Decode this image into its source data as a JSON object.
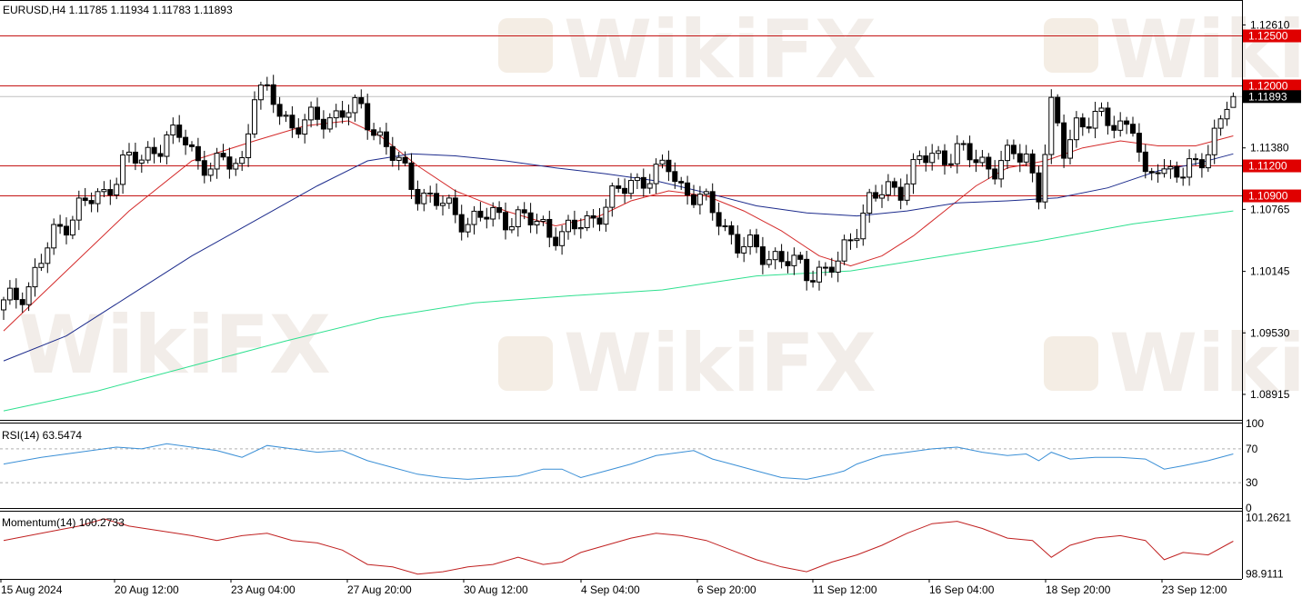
{
  "colors": {
    "background": "#ffffff",
    "bull_candle": "#ffffff",
    "bear_candle": "#000000",
    "ma_fast": "#d42a2a",
    "ma_mid": "#1c2b8c",
    "ma_slow": "#2ee08f",
    "level_line": "#c41414",
    "level_tag": "#e00000",
    "current_tag": "#000000",
    "rsi_line": "#3a8fd6",
    "momentum_line": "#c02020",
    "watermark": "#e5dcd2"
  },
  "watermark_text": "WikiFX",
  "chart_data": [
    {
      "type": "candlestick",
      "title": "EURUSD,H4  1.11785 1.11934 1.11783 1.11893",
      "symbol": "EURUSD",
      "timeframe": "H4",
      "ohlc_header": {
        "open": "1.11785",
        "high": "1.11934",
        "low": "1.11783",
        "close": "1.11893"
      },
      "ylim": [
        1.0866,
        1.1285
      ],
      "price_ticks": [
        "1.12610",
        "1.11380",
        "1.10765",
        "1.10145",
        "1.09530",
        "1.08915"
      ],
      "tick_values": [
        1.1261,
        1.1138,
        1.10765,
        1.10145,
        1.0953,
        1.08915
      ],
      "levels": [
        {
          "value": 1.125,
          "label": "1.12500"
        },
        {
          "value": 1.12,
          "label": "1.12000"
        },
        {
          "value": 1.112,
          "label": "1.11200"
        },
        {
          "value": 1.109,
          "label": "1.10900"
        }
      ],
      "current_price": {
        "value": 1.11893,
        "label": "1.11893"
      },
      "x_labels": [
        "15 Aug 2024",
        "20 Aug 12:00",
        "23 Aug 04:00",
        "27 Aug 20:00",
        "30 Aug 12:00",
        "4 Sep 04:00",
        "6 Sep 20:00",
        "11 Sep 12:00",
        "16 Sep 04:00",
        "18 Sep 20:00",
        "23 Sep 12:00"
      ],
      "close_anchors": [
        [
          0,
          1.098
        ],
        [
          4,
          1.1
        ],
        [
          8,
          1.105
        ],
        [
          12,
          1.108
        ],
        [
          16,
          1.109
        ],
        [
          19,
          1.1125
        ],
        [
          22,
          1.1125
        ],
        [
          26,
          1.115
        ],
        [
          29,
          1.1145
        ],
        [
          31,
          1.1125
        ],
        [
          34,
          1.112
        ],
        [
          38,
          1.1125
        ],
        [
          40,
          1.1195
        ],
        [
          43,
          1.1185
        ],
        [
          46,
          1.116
        ],
        [
          50,
          1.1165
        ],
        [
          54,
          1.1175
        ],
        [
          57,
          1.1175
        ],
        [
          60,
          1.115
        ],
        [
          63,
          1.112
        ],
        [
          66,
          1.1095
        ],
        [
          70,
          1.108
        ],
        [
          74,
          1.1065
        ],
        [
          78,
          1.107
        ],
        [
          82,
          1.1068
        ],
        [
          86,
          1.106
        ],
        [
          89,
          1.105
        ],
        [
          93,
          1.1065
        ],
        [
          96,
          1.108
        ],
        [
          100,
          1.1105
        ],
        [
          104,
          1.111
        ],
        [
          106,
          1.112
        ],
        [
          108,
          1.11
        ],
        [
          111,
          1.1085
        ],
        [
          114,
          1.107
        ],
        [
          117,
          1.104
        ],
        [
          120,
          1.1035
        ],
        [
          123,
          1.103
        ],
        [
          126,
          1.102
        ],
        [
          128,
          1.1015
        ],
        [
          131,
          1.1015
        ],
        [
          133,
          1.102
        ],
        [
          135,
          1.105
        ],
        [
          138,
          1.1085
        ],
        [
          141,
          1.1095
        ],
        [
          143,
          1.11
        ],
        [
          146,
          1.1125
        ],
        [
          149,
          1.113
        ],
        [
          152,
          1.1135
        ],
        [
          155,
          1.1125
        ],
        [
          158,
          1.112
        ],
        [
          161,
          1.113
        ],
        [
          163,
          1.113
        ],
        [
          165,
          1.1095
        ],
        [
          167,
          1.1175
        ],
        [
          169,
          1.1135
        ],
        [
          171,
          1.1165
        ],
        [
          174,
          1.1165
        ],
        [
          177,
          1.1165
        ],
        [
          180,
          1.116
        ],
        [
          182,
          1.11
        ],
        [
          184,
          1.1125
        ],
        [
          186,
          1.1115
        ],
        [
          188,
          1.111
        ],
        [
          190,
          1.112
        ],
        [
          192,
          1.114
        ],
        [
          194,
          1.1165
        ],
        [
          195,
          1.118
        ],
        [
          196,
          1.11893
        ]
      ],
      "series": [
        {
          "name": "MA fast",
          "points": [
            [
              0,
              1.0955
            ],
            [
              10,
              1.1015
            ],
            [
              20,
              1.1075
            ],
            [
              30,
              1.1125
            ],
            [
              40,
              1.1145
            ],
            [
              48,
              1.116
            ],
            [
              55,
              1.1165
            ],
            [
              60,
              1.115
            ],
            [
              66,
              1.112
            ],
            [
              72,
              1.1095
            ],
            [
              80,
              1.1075
            ],
            [
              88,
              1.106
            ],
            [
              95,
              1.107
            ],
            [
              100,
              1.1085
            ],
            [
              106,
              1.1095
            ],
            [
              112,
              1.109
            ],
            [
              118,
              1.1075
            ],
            [
              124,
              1.1055
            ],
            [
              130,
              1.103
            ],
            [
              135,
              1.102
            ],
            [
              140,
              1.103
            ],
            [
              145,
              1.105
            ],
            [
              150,
              1.1075
            ],
            [
              155,
              1.11
            ],
            [
              160,
              1.1118
            ],
            [
              166,
              1.1125
            ],
            [
              172,
              1.1138
            ],
            [
              178,
              1.1145
            ],
            [
              184,
              1.114
            ],
            [
              190,
              1.114
            ],
            [
              196,
              1.115
            ]
          ]
        },
        {
          "name": "MA mid",
          "points": [
            [
              0,
              1.0925
            ],
            [
              10,
              1.095
            ],
            [
              20,
              1.099
            ],
            [
              30,
              1.103
            ],
            [
              40,
              1.1065
            ],
            [
              50,
              1.11
            ],
            [
              58,
              1.1125
            ],
            [
              65,
              1.1132
            ],
            [
              72,
              1.113
            ],
            [
              80,
              1.1125
            ],
            [
              88,
              1.1118
            ],
            [
              96,
              1.1112
            ],
            [
              104,
              1.1105
            ],
            [
              112,
              1.1093
            ],
            [
              120,
              1.108
            ],
            [
              128,
              1.1073
            ],
            [
              136,
              1.107
            ],
            [
              144,
              1.1075
            ],
            [
              152,
              1.1083
            ],
            [
              160,
              1.1085
            ],
            [
              168,
              1.1088
            ],
            [
              176,
              1.1098
            ],
            [
              184,
              1.1115
            ],
            [
              190,
              1.1122
            ],
            [
              196,
              1.1132
            ]
          ]
        },
        {
          "name": "MA slow",
          "points": [
            [
              0,
              1.0875
            ],
            [
              15,
              1.0895
            ],
            [
              30,
              1.092
            ],
            [
              45,
              1.0945
            ],
            [
              60,
              1.0968
            ],
            [
              75,
              1.0983
            ],
            [
              90,
              1.099
            ],
            [
              105,
              1.0996
            ],
            [
              120,
              1.101
            ],
            [
              135,
              1.1015
            ],
            [
              150,
              1.103
            ],
            [
              165,
              1.1045
            ],
            [
              180,
              1.1062
            ],
            [
              196,
              1.1075
            ]
          ]
        }
      ]
    },
    {
      "type": "line",
      "title": "RSI(14) 63.5474",
      "name": "RSI(14)",
      "current_value": 63.5474,
      "ylim": [
        0,
        100
      ],
      "ticks": [
        "100",
        "70",
        "30",
        "0"
      ],
      "levels": [
        70,
        30
      ],
      "points": [
        [
          0,
          52
        ],
        [
          6,
          60
        ],
        [
          12,
          66
        ],
        [
          18,
          72
        ],
        [
          22,
          70
        ],
        [
          26,
          76
        ],
        [
          30,
          72
        ],
        [
          34,
          68
        ],
        [
          38,
          60
        ],
        [
          42,
          74
        ],
        [
          46,
          70
        ],
        [
          50,
          66
        ],
        [
          54,
          68
        ],
        [
          58,
          56
        ],
        [
          62,
          48
        ],
        [
          66,
          40
        ],
        [
          70,
          36
        ],
        [
          74,
          34
        ],
        [
          78,
          36
        ],
        [
          82,
          38
        ],
        [
          86,
          46
        ],
        [
          89,
          46
        ],
        [
          92,
          36
        ],
        [
          96,
          44
        ],
        [
          100,
          52
        ],
        [
          104,
          62
        ],
        [
          108,
          66
        ],
        [
          110,
          68
        ],
        [
          113,
          58
        ],
        [
          116,
          52
        ],
        [
          120,
          44
        ],
        [
          124,
          36
        ],
        [
          128,
          34
        ],
        [
          132,
          40
        ],
        [
          134,
          44
        ],
        [
          136,
          52
        ],
        [
          140,
          62
        ],
        [
          144,
          66
        ],
        [
          148,
          70
        ],
        [
          152,
          72
        ],
        [
          156,
          66
        ],
        [
          160,
          62
        ],
        [
          163,
          64
        ],
        [
          165,
          56
        ],
        [
          167,
          66
        ],
        [
          170,
          58
        ],
        [
          174,
          60
        ],
        [
          178,
          60
        ],
        [
          182,
          58
        ],
        [
          185,
          46
        ],
        [
          188,
          50
        ],
        [
          192,
          56
        ],
        [
          196,
          64
        ]
      ]
    },
    {
      "type": "line",
      "title": "Momentum(14) 100.2733",
      "name": "Momentum(14)",
      "current_value": 100.2733,
      "ylim": [
        98.7,
        101.5
      ],
      "ticks": [
        "101.2621",
        "98.9111"
      ],
      "points": [
        [
          0,
          100.3
        ],
        [
          6,
          100.6
        ],
        [
          12,
          100.9
        ],
        [
          16,
          101.2
        ],
        [
          20,
          100.9
        ],
        [
          25,
          100.7
        ],
        [
          30,
          100.5
        ],
        [
          34,
          100.3
        ],
        [
          38,
          100.5
        ],
        [
          42,
          100.6
        ],
        [
          46,
          100.3
        ],
        [
          50,
          100.2
        ],
        [
          54,
          99.9
        ],
        [
          58,
          99.3
        ],
        [
          62,
          99.2
        ],
        [
          66,
          98.9
        ],
        [
          70,
          99.0
        ],
        [
          74,
          99.2
        ],
        [
          78,
          99.3
        ],
        [
          82,
          99.6
        ],
        [
          86,
          99.3
        ],
        [
          89,
          99.4
        ],
        [
          92,
          99.8
        ],
        [
          96,
          100.1
        ],
        [
          100,
          100.4
        ],
        [
          104,
          100.6
        ],
        [
          108,
          100.5
        ],
        [
          112,
          100.3
        ],
        [
          116,
          99.9
        ],
        [
          120,
          99.5
        ],
        [
          124,
          99.2
        ],
        [
          128,
          99.0
        ],
        [
          132,
          99.4
        ],
        [
          136,
          99.7
        ],
        [
          140,
          100.1
        ],
        [
          144,
          100.6
        ],
        [
          148,
          101.0
        ],
        [
          152,
          101.1
        ],
        [
          156,
          100.8
        ],
        [
          160,
          100.4
        ],
        [
          164,
          100.3
        ],
        [
          167,
          99.6
        ],
        [
          170,
          100.1
        ],
        [
          174,
          100.4
        ],
        [
          178,
          100.5
        ],
        [
          182,
          100.3
        ],
        [
          185,
          99.5
        ],
        [
          188,
          99.8
        ],
        [
          192,
          99.7
        ],
        [
          196,
          100.27
        ]
      ]
    }
  ]
}
